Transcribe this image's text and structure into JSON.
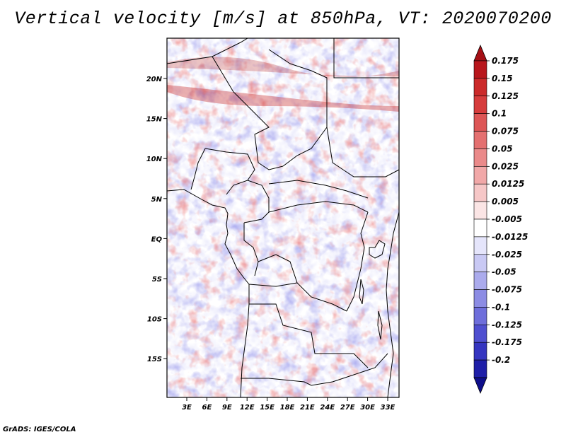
{
  "title": "Vertical velocity [m/s] at 850hPa, VT: 2020070200",
  "credit": "GrADS: IGES/COLA",
  "map": {
    "lon_ticks": [
      "3E",
      "6E",
      "9E",
      "12E",
      "15E",
      "18E",
      "21E",
      "24E",
      "27E",
      "30E",
      "33E"
    ],
    "lat_ticks": [
      "20N",
      "15N",
      "10N",
      "5N",
      "EQ",
      "5S",
      "10S",
      "15S"
    ]
  },
  "colorbar": {
    "labels": [
      "0.175",
      "0.15",
      "0.125",
      "0.1",
      "0.075",
      "0.05",
      "0.025",
      "0.0125",
      "0.005",
      "-0.005",
      "-0.0125",
      "-0.025",
      "-0.05",
      "-0.075",
      "-0.1",
      "-0.125",
      "-0.175",
      "-0.2"
    ],
    "colors": [
      "#a50f15",
      "#b8161c",
      "#cb2a2a",
      "#d63c3c",
      "#dd5656",
      "#e47070",
      "#ea8a8a",
      "#f1a8a8",
      "#f6c7c7",
      "#fbe5e5",
      "#ffffff",
      "#e5e5fb",
      "#c9c9f4",
      "#ababed",
      "#8c8ce4",
      "#6e6edb",
      "#4f4fd0",
      "#3535c0",
      "#1f1fa8",
      "#0e0e8a"
    ]
  }
}
